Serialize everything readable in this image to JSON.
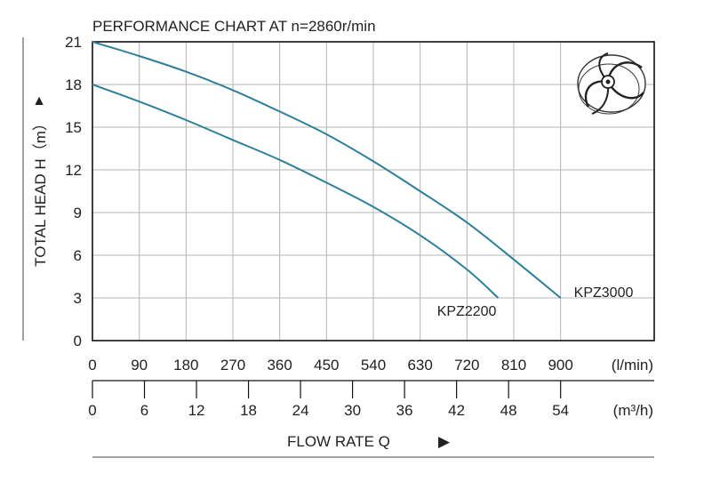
{
  "chart_data": {
    "type": "line",
    "title": "PERFORMANCE  CHART AT  n=2860r/min",
    "ylabel": "TOTAL HEAD  H（m）",
    "ylabel_arrow": "▲",
    "xlabel": "FLOW  RATE  Q",
    "xlabel_arrow": "▶",
    "x_unit_lmin": "(l/min)",
    "x_unit_m3h": "(m³/h)",
    "ylim": [
      0,
      21
    ],
    "xlim_lmin": [
      0,
      1080
    ],
    "yticks": [
      0,
      3,
      6,
      9,
      12,
      15,
      18,
      21
    ],
    "xticks_lmin": [
      0,
      90,
      180,
      270,
      360,
      450,
      540,
      630,
      720,
      810,
      900
    ],
    "xticks_m3h": [
      0,
      6,
      12,
      18,
      24,
      30,
      36,
      42,
      48,
      54
    ],
    "grid": true,
    "curve_color": "#2f7f98",
    "series": [
      {
        "name": "KPZ3000",
        "x": [
          0,
          90,
          180,
          270,
          360,
          450,
          540,
          630,
          720,
          810,
          900
        ],
        "y": [
          21.0,
          20.0,
          18.9,
          17.6,
          16.1,
          14.5,
          12.6,
          10.5,
          8.3,
          5.7,
          3.0
        ]
      },
      {
        "name": "KPZ2200",
        "x": [
          0,
          90,
          180,
          270,
          360,
          450,
          540,
          630,
          720,
          780
        ],
        "y": [
          18.0,
          16.8,
          15.5,
          14.1,
          12.7,
          11.1,
          9.4,
          7.4,
          5.0,
          3.0
        ]
      }
    ]
  }
}
